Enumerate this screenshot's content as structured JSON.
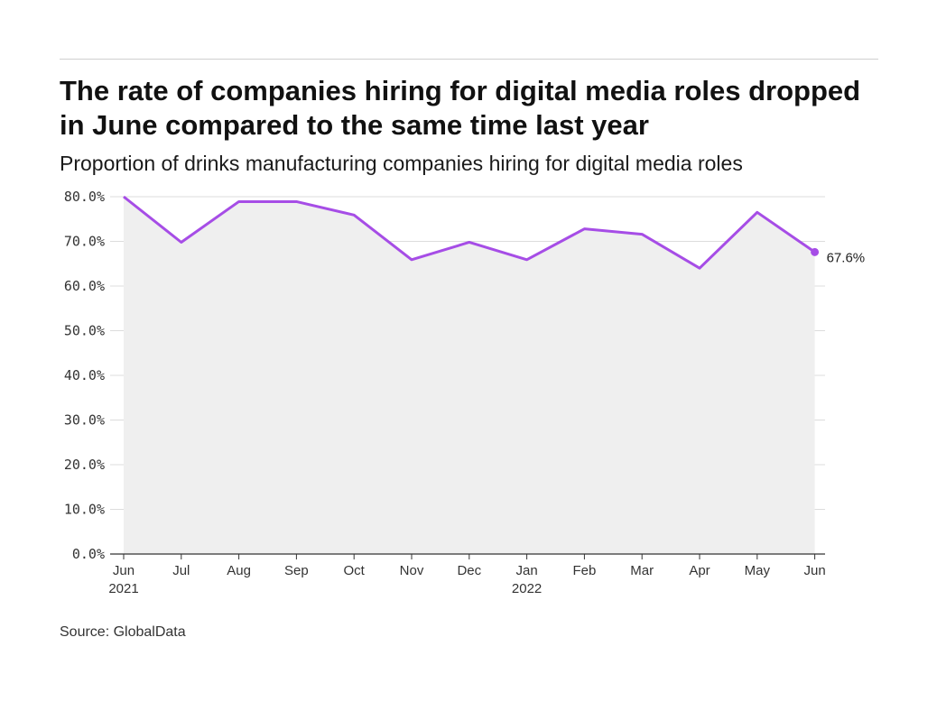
{
  "header": {
    "title": "The rate of companies hiring for digital media roles dropped in June compared to the same time last year",
    "subtitle": "Proportion of drinks manufacturing companies hiring for digital media roles"
  },
  "footer": {
    "source": "Source: GlobalData"
  },
  "colors": {
    "line": "#a64de6",
    "area": "#efefef",
    "grid": "#dcdcdc",
    "axis": "#333333"
  },
  "chart_data": {
    "type": "area",
    "title": "The rate of companies hiring for digital media roles dropped in June compared to the same time last year",
    "subtitle": "Proportion of drinks manufacturing companies hiring for digital media roles",
    "xlabel": "",
    "ylabel": "",
    "categories": [
      "Jun 2021",
      "Jul",
      "Aug",
      "Sep",
      "Oct",
      "Nov",
      "Dec",
      "Jan 2022",
      "Feb",
      "Mar",
      "Apr",
      "May",
      "Jun"
    ],
    "x_tick_labels": [
      [
        "Jun",
        "2021"
      ],
      [
        "Jul"
      ],
      [
        "Aug"
      ],
      [
        "Sep"
      ],
      [
        "Oct"
      ],
      [
        "Nov"
      ],
      [
        "Dec"
      ],
      [
        "Jan",
        "2022"
      ],
      [
        "Feb"
      ],
      [
        "Mar"
      ],
      [
        "Apr"
      ],
      [
        "May"
      ],
      [
        "Jun"
      ]
    ],
    "series": [
      {
        "values": [
          80.0,
          69.8,
          78.9,
          78.9,
          75.9,
          65.9,
          69.8,
          65.9,
          72.8,
          71.6,
          64.0,
          76.5,
          67.6
        ]
      }
    ],
    "ylim": [
      0,
      80
    ],
    "y_ticks": [
      "0.0%",
      "10.0%",
      "20.0%",
      "30.0%",
      "40.0%",
      "50.0%",
      "60.0%",
      "70.0%",
      "80.0%"
    ],
    "end_label": "67.6%",
    "grid": true,
    "legend": "none"
  }
}
